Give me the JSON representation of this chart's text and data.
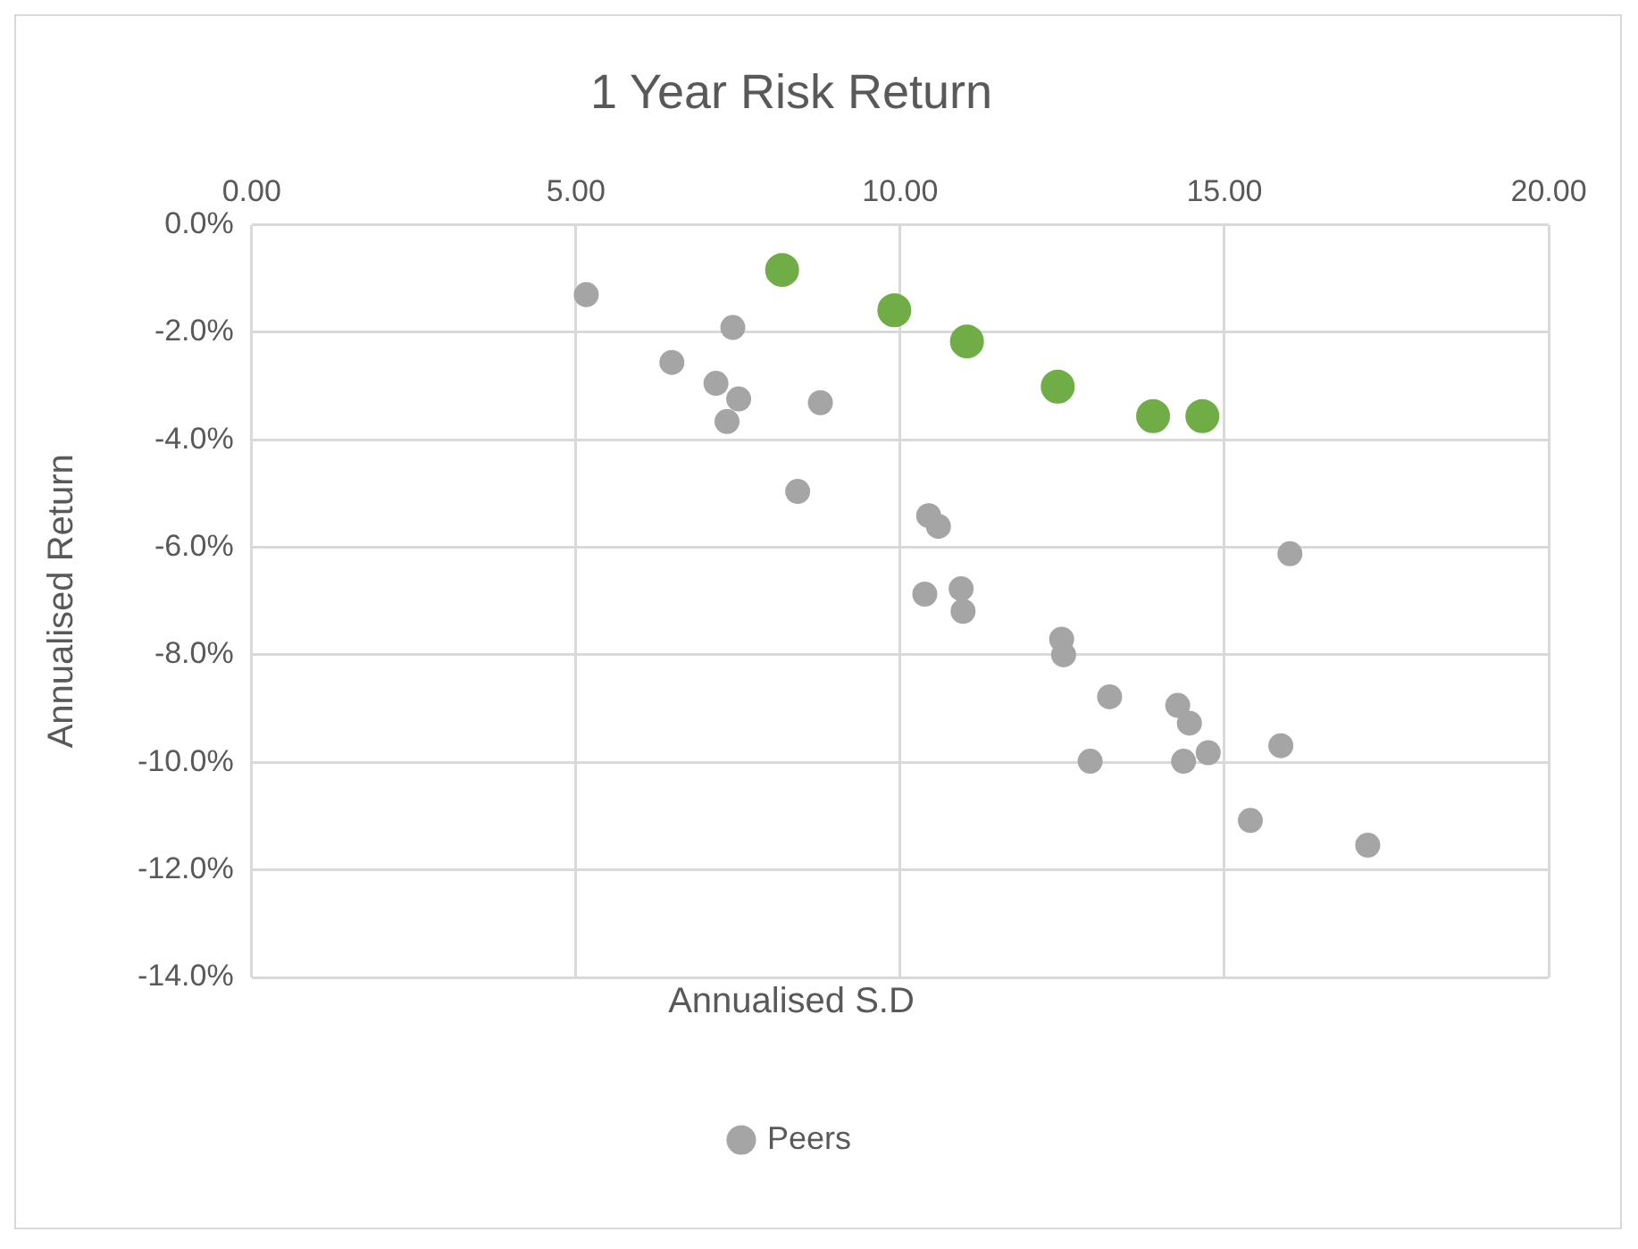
{
  "chart_data": {
    "type": "scatter",
    "title": "1 Year Risk Return",
    "xlabel": "Annualised S.D",
    "ylabel": "Annualised Return",
    "xlim": [
      0,
      20
    ],
    "xticks": [
      {
        "value": 0,
        "label": "0.00"
      },
      {
        "value": 5,
        "label": "5.00"
      },
      {
        "value": 10,
        "label": "10.00"
      },
      {
        "value": 15,
        "label": "15.00"
      },
      {
        "value": 20,
        "label": "20.00"
      }
    ],
    "ylim": [
      -14,
      0
    ],
    "yticks": [
      {
        "value": 0,
        "label": "0.0%"
      },
      {
        "value": -2,
        "label": "-2.0%"
      },
      {
        "value": -4,
        "label": "-4.0%"
      },
      {
        "value": -6,
        "label": "-6.0%"
      },
      {
        "value": -8,
        "label": "-8.0%"
      },
      {
        "value": -10,
        "label": "-10.0%"
      },
      {
        "value": -12,
        "label": "-12.0%"
      },
      {
        "value": -14,
        "label": "-14.0%"
      }
    ],
    "grid": true,
    "legend": "bottom",
    "marker": "circle",
    "series": [
      {
        "color": "#70ad47",
        "x": [
          8.18,
          9.91,
          11.03,
          12.43,
          13.9,
          14.66
        ],
        "values": [
          -0.84,
          -1.59,
          -2.17,
          -3.01,
          -3.56,
          -3.56
        ]
      },
      {
        "name": "Peers",
        "color": "#a5a5a5",
        "x": [
          5.16,
          7.42,
          6.48,
          7.16,
          7.51,
          8.77,
          7.33,
          8.42,
          10.44,
          10.59,
          16.01,
          10.38,
          10.94,
          10.97,
          12.49,
          12.52,
          13.23,
          14.28,
          14.46,
          15.87,
          14.75,
          12.93,
          14.37,
          15.4,
          17.21
        ],
        "values": [
          -1.3,
          -1.91,
          -2.56,
          -2.95,
          -3.24,
          -3.31,
          -3.66,
          -4.96,
          -5.41,
          -5.61,
          -6.12,
          -6.87,
          -6.77,
          -7.19,
          -7.71,
          -8.0,
          -8.78,
          -8.94,
          -9.27,
          -9.69,
          -9.82,
          -9.98,
          -9.98,
          -11.08,
          -11.54
        ]
      }
    ]
  }
}
